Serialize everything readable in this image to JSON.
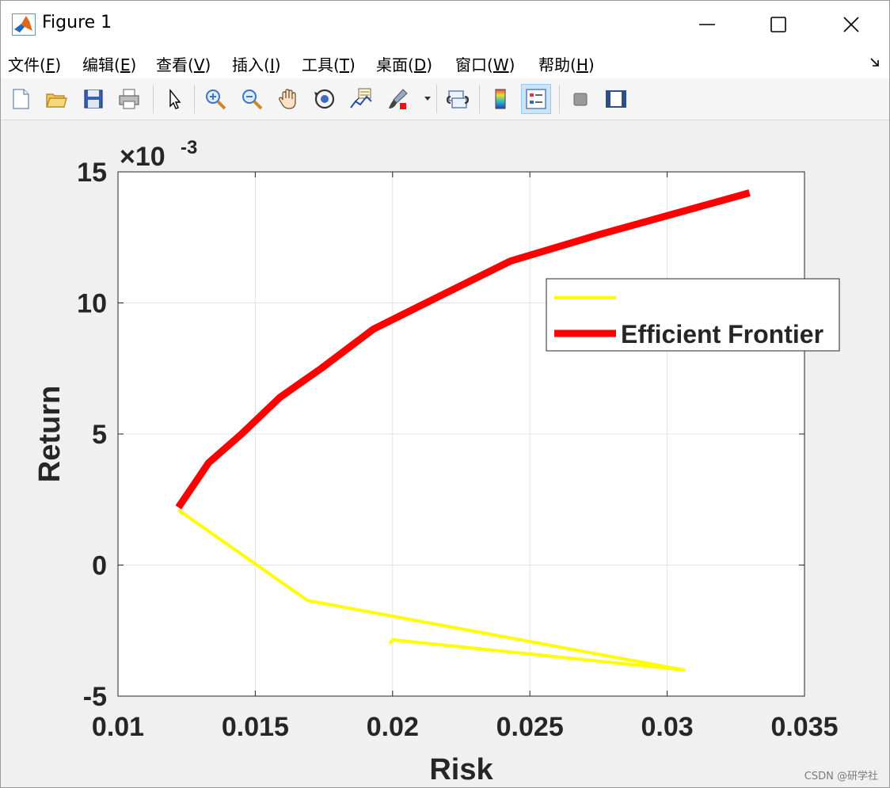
{
  "window": {
    "title": "Figure 1"
  },
  "menu": {
    "items": [
      {
        "label": "文件(",
        "key": "F",
        "suffix": ")"
      },
      {
        "label": "编辑(",
        "key": "E",
        "suffix": ")"
      },
      {
        "label": "查看(",
        "key": "V",
        "suffix": ")"
      },
      {
        "label": "插入(",
        "key": "I",
        "suffix": ")"
      },
      {
        "label": "工具(",
        "key": "T",
        "suffix": ")"
      },
      {
        "label": "桌面(",
        "key": "D",
        "suffix": ")"
      },
      {
        "label": "窗口(",
        "key": "W",
        "suffix": ")"
      },
      {
        "label": "帮助(",
        "key": "H",
        "suffix": ")"
      }
    ],
    "dock_icon": "dock-arrow-icon"
  },
  "toolbar": {
    "buttons": [
      {
        "name": "new-figure-icon"
      },
      {
        "name": "open-file-icon"
      },
      {
        "name": "save-icon"
      },
      {
        "name": "print-icon"
      },
      {
        "name": "pointer-icon"
      },
      {
        "name": "zoom-in-icon"
      },
      {
        "name": "zoom-out-icon"
      },
      {
        "name": "pan-hand-icon"
      },
      {
        "name": "rotate-3d-icon"
      },
      {
        "name": "data-cursor-icon"
      },
      {
        "name": "brush-icon"
      },
      {
        "name": "link-plot-icon"
      },
      {
        "name": "colorbar-icon"
      },
      {
        "name": "legend-icon"
      },
      {
        "name": "hide-plot-tools-icon"
      },
      {
        "name": "show-plot-tools-icon"
      }
    ]
  },
  "chart_data": {
    "type": "line",
    "xlabel": "Risk",
    "ylabel": "Return",
    "y_exponent_label": "×10",
    "y_exponent_power": "-3",
    "xlim": [
      0.01,
      0.035
    ],
    "ylim": [
      -5,
      15
    ],
    "xticks": [
      "0.01",
      "0.015",
      "0.02",
      "0.025",
      "0.03",
      "0.035"
    ],
    "yticks": [
      "-5",
      "0",
      "5",
      "10",
      "15"
    ],
    "grid": true,
    "legend_position": "top-right",
    "series": [
      {
        "name": "",
        "color": "#ffff00",
        "line_width": "thin",
        "x": [
          0.0122,
          0.0169,
          0.0306,
          0.02,
          0.0199
        ],
        "y": [
          2.1,
          -1.35,
          -4.0,
          -2.85,
          -3.0
        ]
      },
      {
        "name": "Efficient Frontier",
        "color": "#ff0000",
        "line_width": "thick",
        "x": [
          0.0122,
          0.0133,
          0.0145,
          0.0159,
          0.0174,
          0.0193,
          0.0216,
          0.0243,
          0.0275,
          0.033
        ],
        "y": [
          2.2,
          3.9,
          5.0,
          6.4,
          7.5,
          9.0,
          10.2,
          11.6,
          12.6,
          14.2
        ]
      }
    ]
  },
  "footer": {
    "watermark": "CSDN @研学社"
  }
}
